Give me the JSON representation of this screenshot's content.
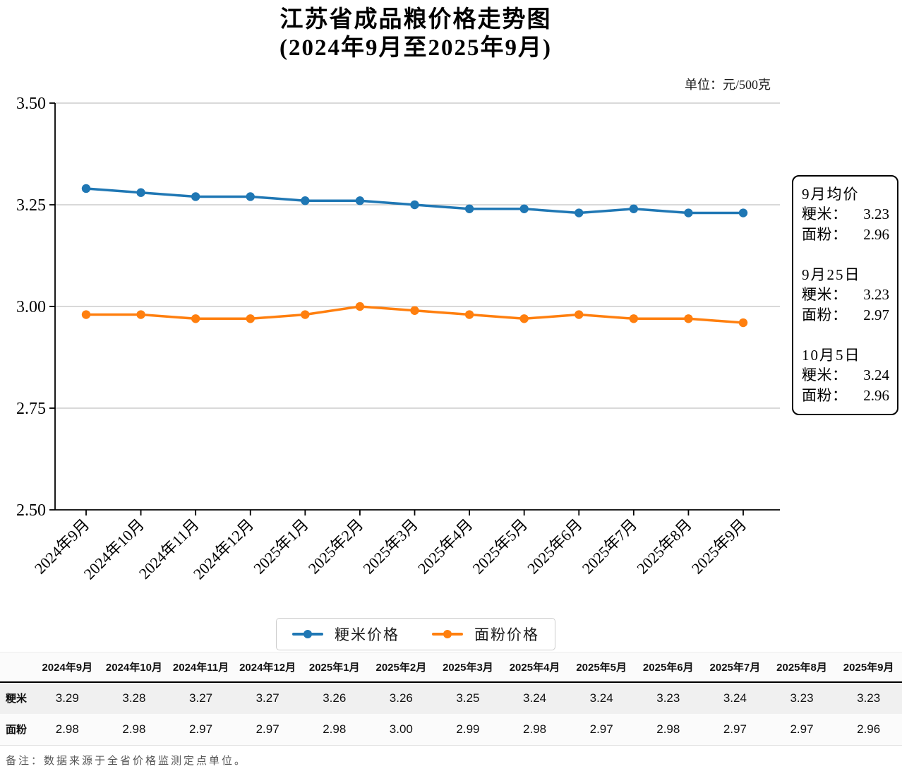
{
  "title": "江苏省成品粮价格走势图",
  "subtitle": "(2024年9月至2025年9月)",
  "unit_label": "单位：元/500克",
  "chart_data": {
    "type": "line",
    "categories": [
      "2024年9月",
      "2024年10月",
      "2024年11月",
      "2024年12月",
      "2025年1月",
      "2025年2月",
      "2025年3月",
      "2025年4月",
      "2025年5月",
      "2025年6月",
      "2025年7月",
      "2025年8月",
      "2025年9月"
    ],
    "series": [
      {
        "name": "粳米价格",
        "color": "#1f77b4",
        "values": [
          3.29,
          3.28,
          3.27,
          3.27,
          3.26,
          3.26,
          3.25,
          3.24,
          3.24,
          3.23,
          3.24,
          3.23,
          3.23
        ]
      },
      {
        "name": "面粉价格",
        "color": "#ff7f0e",
        "values": [
          2.98,
          2.98,
          2.97,
          2.97,
          2.98,
          3.0,
          2.99,
          2.98,
          2.97,
          2.98,
          2.97,
          2.97,
          2.96
        ]
      }
    ],
    "ylim": [
      2.5,
      3.5
    ],
    "yticks": [
      "3.50",
      "3.25",
      "3.00",
      "2.75",
      "2.50"
    ],
    "grid": true,
    "grid_color": "#b3b3b3",
    "axis_color": "#000000",
    "legend_position": "bottom"
  },
  "stats_box": {
    "sections": [
      {
        "heading": "9月均价",
        "rows": [
          {
            "label": "粳米：",
            "value": "3.23"
          },
          {
            "label": "面粉：",
            "value": "2.96"
          }
        ]
      },
      {
        "heading": "9月25日",
        "rows": [
          {
            "label": "粳米：",
            "value": "3.23"
          },
          {
            "label": "面粉：",
            "value": "2.97"
          }
        ]
      },
      {
        "heading": "10月5日",
        "rows": [
          {
            "label": "粳米：",
            "value": "3.24"
          },
          {
            "label": "面粉：",
            "value": "2.96"
          }
        ]
      }
    ]
  },
  "legend": {
    "items": [
      {
        "label": "粳米价格",
        "color": "#1f77b4"
      },
      {
        "label": "面粉价格",
        "color": "#ff7f0e"
      }
    ]
  },
  "table": {
    "columns": [
      "2024年9月",
      "2024年10月",
      "2024年11月",
      "2024年12月",
      "2025年1月",
      "2025年2月",
      "2025年3月",
      "2025年4月",
      "2025年5月",
      "2025年6月",
      "2025年7月",
      "2025年8月",
      "2025年9月"
    ],
    "rows": [
      {
        "label": "粳米",
        "values": [
          "3.29",
          "3.28",
          "3.27",
          "3.27",
          "3.26",
          "3.26",
          "3.25",
          "3.24",
          "3.24",
          "3.23",
          "3.24",
          "3.23",
          "3.23"
        ]
      },
      {
        "label": "面粉",
        "values": [
          "2.98",
          "2.98",
          "2.97",
          "2.97",
          "2.98",
          "3.00",
          "2.99",
          "2.98",
          "2.97",
          "2.98",
          "2.97",
          "2.97",
          "2.96"
        ]
      }
    ]
  },
  "footnote": "备注：数据来源于全省价格监测定点单位。"
}
